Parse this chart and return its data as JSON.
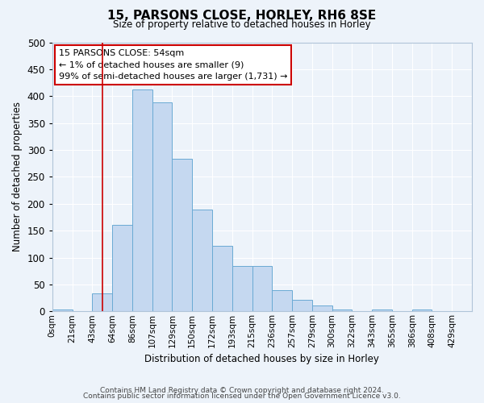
{
  "title": "15, PARSONS CLOSE, HORLEY, RH6 8SE",
  "subtitle": "Size of property relative to detached houses in Horley",
  "xlabel": "Distribution of detached houses by size in Horley",
  "ylabel": "Number of detached properties",
  "bar_color": "#c5d8f0",
  "bar_edge_color": "#6aaad4",
  "background_color": "#edf3fa",
  "grid_color": "#ffffff",
  "bin_labels": [
    "0sqm",
    "21sqm",
    "43sqm",
    "64sqm",
    "86sqm",
    "107sqm",
    "129sqm",
    "150sqm",
    "172sqm",
    "193sqm",
    "215sqm",
    "236sqm",
    "257sqm",
    "279sqm",
    "300sqm",
    "322sqm",
    "343sqm",
    "365sqm",
    "386sqm",
    "408sqm",
    "429sqm"
  ],
  "bin_values": [
    4,
    0,
    33,
    160,
    413,
    388,
    284,
    189,
    121,
    85,
    85,
    40,
    21,
    11,
    4,
    0,
    4,
    0,
    4,
    0,
    0
  ],
  "ylim": [
    0,
    500
  ],
  "yticks": [
    0,
    50,
    100,
    150,
    200,
    250,
    300,
    350,
    400,
    450,
    500
  ],
  "vline_x": 2.52,
  "vline_color": "#cc0000",
  "annotation_title": "15 PARSONS CLOSE: 54sqm",
  "annotation_line1": "← 1% of detached houses are smaller (9)",
  "annotation_line2": "99% of semi-detached houses are larger (1,731) →",
  "annotation_box_color": "#ffffff",
  "annotation_box_edge_color": "#cc0000",
  "footer1": "Contains HM Land Registry data © Crown copyright and database right 2024.",
  "footer2": "Contains public sector information licensed under the Open Government Licence v3.0."
}
